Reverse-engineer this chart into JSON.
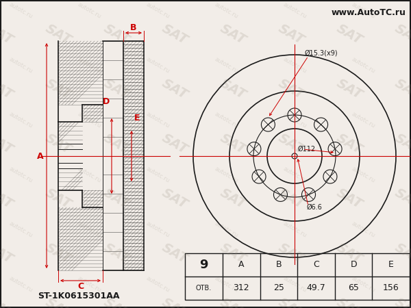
{
  "bg_color": "#f2ede8",
  "line_color": "#1a1a1a",
  "red_color": "#cc0000",
  "watermark_color": "#c8bfb8",
  "title_url": "www.AutoTC.ru",
  "part_number": "ST-1K0615301AA",
  "holes_count": "9",
  "otv_label": "ОТВ.",
  "table_headers": [
    "A",
    "B",
    "C",
    "D",
    "E"
  ],
  "table_values": [
    "312",
    "25",
    "49.7",
    "65",
    "156"
  ],
  "front_view_labels": {
    "outer_dia": "Ø15.3(x9)",
    "bolt_circle": "Ø112",
    "center_hole": "Ø6.6"
  },
  "n_bolt_holes": 9,
  "fig_width": 6.0,
  "fig_height": 4.5,
  "dpi": 100
}
